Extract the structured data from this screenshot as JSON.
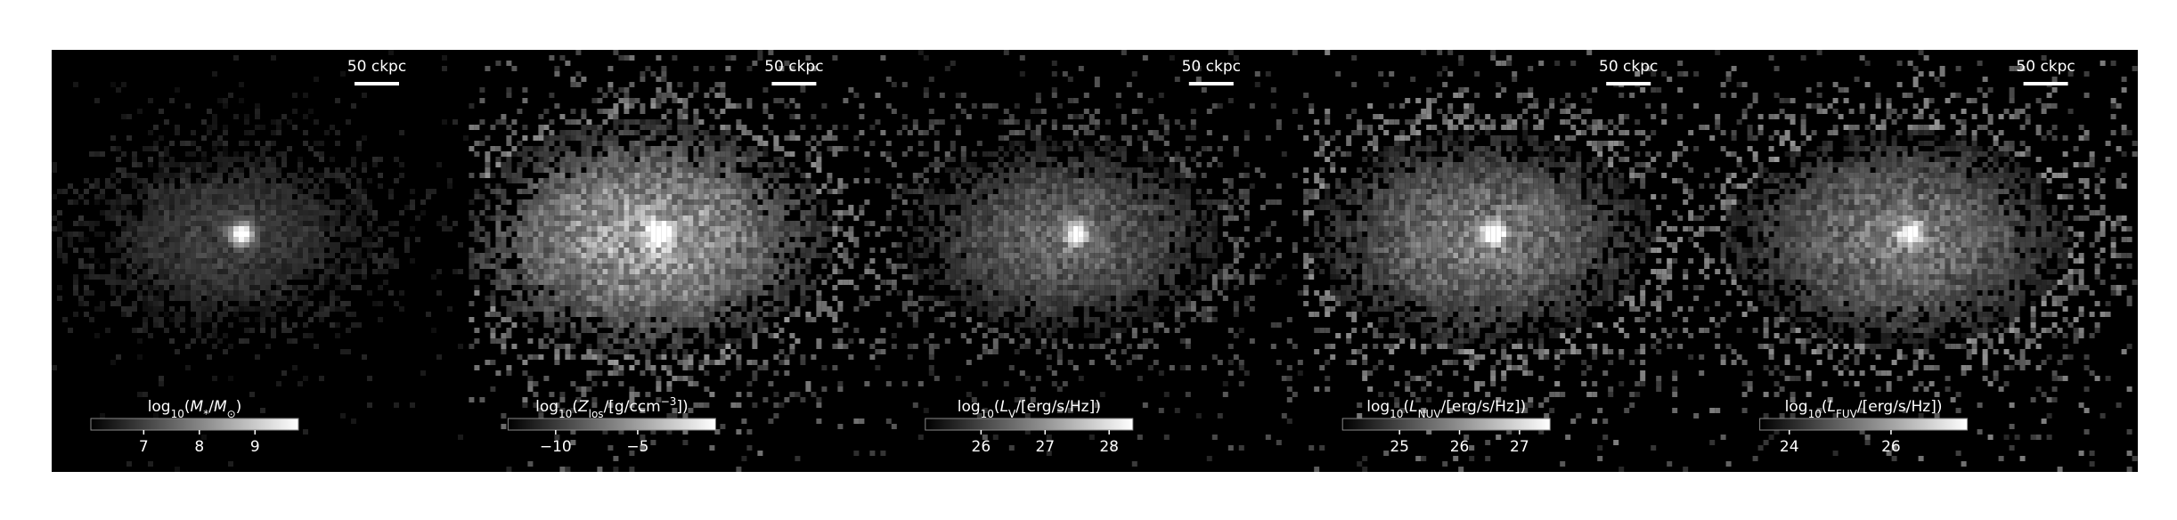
{
  "panels": [
    {
      "scalebar": "50 ckpc",
      "colorbar": {
        "label": [
          {
            "text": "log"
          },
          {
            "text": "10",
            "style": "sub"
          },
          {
            "text": "("
          },
          {
            "text": "M",
            "style": "italic"
          },
          {
            "text": "*",
            "style": "sub"
          },
          {
            "text": "/"
          },
          {
            "text": "M",
            "style": "italic"
          },
          {
            "text": "⊙",
            "style": "sub"
          },
          {
            "text": ")"
          }
        ],
        "lim": [
          6.05,
          9.78
        ],
        "ticks": [
          7,
          8,
          9
        ]
      }
    },
    {
      "scalebar": "50 ckpc",
      "colorbar": {
        "label": [
          {
            "text": "log"
          },
          {
            "text": "10",
            "style": "sub"
          },
          {
            "text": "("
          },
          {
            "text": "Z",
            "style": "italic"
          },
          {
            "text": "los",
            "style": "sub"
          },
          {
            "text": "/[g/ccm"
          },
          {
            "text": "−3",
            "style": "sup"
          },
          {
            "text": "])"
          }
        ],
        "lim": [
          -12.9,
          -0.25
        ],
        "ticks": [
          {
            "value": -10,
            "label": "−10"
          },
          {
            "value": -5,
            "label": "−5"
          }
        ]
      }
    },
    {
      "scalebar": "50 ckpc",
      "colorbar": {
        "label": [
          {
            "text": "log"
          },
          {
            "text": "10",
            "style": "sub"
          },
          {
            "text": "("
          },
          {
            "text": "L",
            "style": "italic"
          },
          {
            "text": "V",
            "style": "sub"
          },
          {
            "text": "/[erg/s/Hz])"
          }
        ],
        "lim": [
          25.13,
          28.37
        ],
        "ticks": [
          26,
          27,
          28
        ]
      }
    },
    {
      "scalebar": "50 ckpc",
      "colorbar": {
        "label": [
          {
            "text": "log"
          },
          {
            "text": "10",
            "style": "sub"
          },
          {
            "text": "("
          },
          {
            "text": "L",
            "style": "italic"
          },
          {
            "text": "NUV",
            "style": "sub"
          },
          {
            "text": "/[erg/s/Hz])"
          }
        ],
        "lim": [
          24.05,
          27.51
        ],
        "ticks": [
          25,
          26,
          27
        ]
      }
    },
    {
      "scalebar": "50 ckpc",
      "colorbar": {
        "label": [
          {
            "text": "log"
          },
          {
            "text": "10",
            "style": "sub"
          },
          {
            "text": "("
          },
          {
            "text": "L",
            "style": "italic"
          },
          {
            "text": "FUV",
            "style": "sub"
          },
          {
            "text": "/[erg/s/Hz])"
          }
        ],
        "lim": [
          23.42,
          27.5
        ],
        "ticks": [
          24,
          26
        ]
      }
    }
  ]
}
